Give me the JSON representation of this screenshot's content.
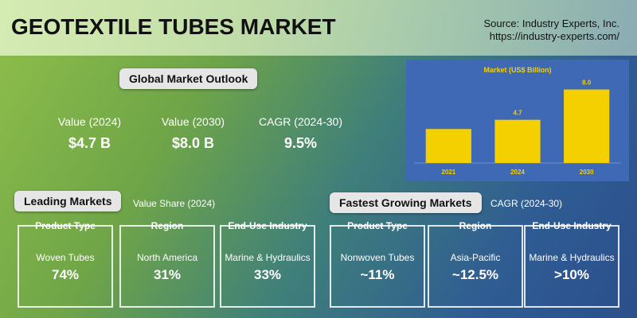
{
  "header": {
    "title": "GEOTEXTILE TUBES MARKET",
    "source": "Source: Industry Experts, Inc.",
    "url": "https://industry-experts.com/"
  },
  "outlook": {
    "title": "Global Market Outlook",
    "items": [
      {
        "label": "Value (2024)",
        "value": "$4.7 B"
      },
      {
        "label": "Value (2030)",
        "value": "$8.0 B"
      },
      {
        "label": "CAGR (2024-30)",
        "value": "9.5%"
      }
    ]
  },
  "chart_data": {
    "type": "bar",
    "title": "Market (US$ Billion)",
    "categories": [
      "2021",
      "2024",
      "2030"
    ],
    "values": [
      3.7,
      4.7,
      8.0
    ],
    "value_labels": [
      null,
      "4.7",
      "8.0"
    ],
    "color": "#f5d000",
    "ylim": [
      0,
      9
    ]
  },
  "leading": {
    "title": "Leading Markets",
    "subtitle": "Value Share (2024)",
    "cards": [
      {
        "heading": "Product Type",
        "name": "Woven Tubes",
        "value": "74%"
      },
      {
        "heading": "Region",
        "name": "North America",
        "value": "31%"
      },
      {
        "heading": "End-Use Industry",
        "name": "Marine & Hydraulics",
        "value": "33%"
      }
    ]
  },
  "fastest": {
    "title": "Fastest Growing Markets",
    "subtitle": "CAGR (2024-30)",
    "cards": [
      {
        "heading": "Product Type",
        "name": "Nonwoven Tubes",
        "value": "~11%"
      },
      {
        "heading": "Region",
        "name": "Asia-Pacific",
        "value": "~12.5%"
      },
      {
        "heading": "End-Use Industry",
        "name": "Marine & Hydraulics",
        "value": ">10%"
      }
    ]
  }
}
